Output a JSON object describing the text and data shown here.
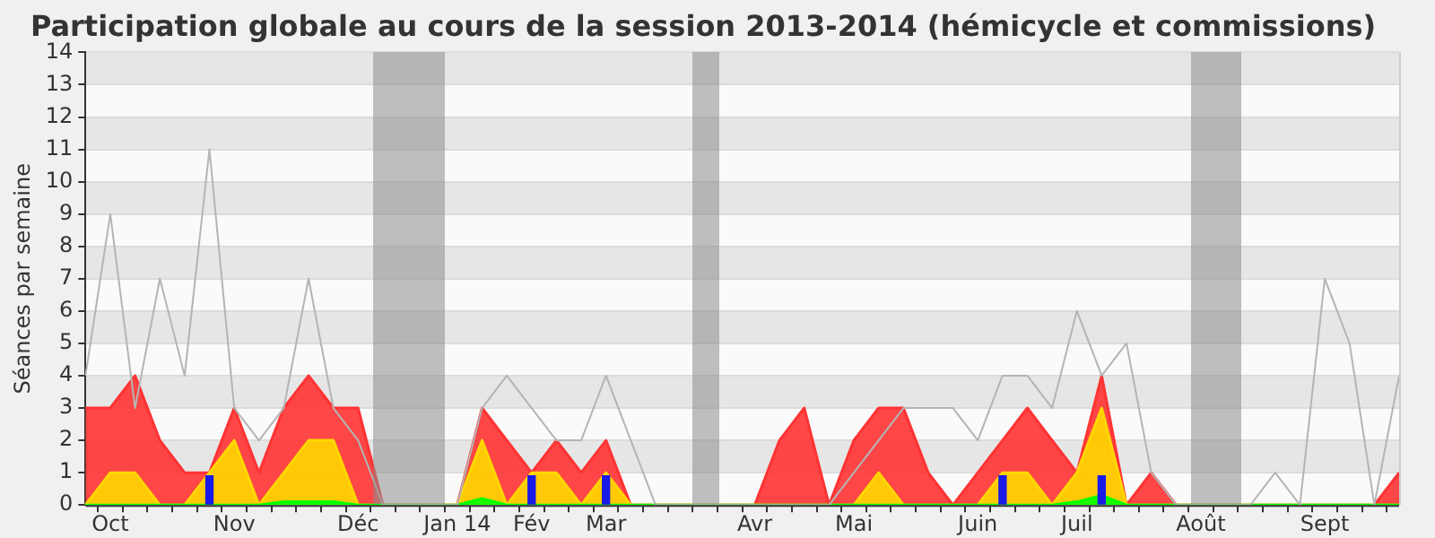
{
  "chart_data": {
    "type": "area",
    "title": "Participation globale au cours de la session 2013-2014 (hémicycle et commissions)",
    "ylabel": "Séances par semaine",
    "categories": [
      null,
      "Oct",
      null,
      null,
      null,
      null,
      "Nov",
      null,
      null,
      null,
      null,
      "Déc",
      null,
      null,
      null,
      "Jan 14",
      null,
      null,
      "Fév",
      null,
      null,
      "Mar",
      null,
      null,
      null,
      null,
      null,
      "Avr",
      null,
      null,
      null,
      "Mai",
      null,
      null,
      null,
      null,
      "Juin",
      null,
      null,
      null,
      "Juil",
      null,
      null,
      null,
      null,
      "Août",
      null,
      null,
      null,
      null,
      "Sept",
      null,
      null,
      null
    ],
    "ylim": [
      0,
      14
    ],
    "yticks": [
      0,
      1,
      2,
      3,
      4,
      5,
      6,
      7,
      8,
      9,
      10,
      11,
      12,
      13,
      14
    ],
    "grid": "y",
    "legend": false,
    "series": [
      {
        "color": "#ff3333",
        "values": [
          3,
          3,
          4,
          2,
          1,
          1,
          3,
          1,
          3,
          4,
          3,
          3,
          0,
          0,
          0,
          0,
          3,
          2,
          1,
          2,
          1,
          2,
          0,
          0,
          0,
          0,
          0,
          0,
          2,
          3,
          0,
          2,
          3,
          3,
          1,
          0,
          1,
          2,
          3,
          2,
          1,
          4,
          0,
          1,
          0,
          0,
          0,
          0,
          0,
          0,
          0,
          0,
          0,
          1
        ]
      },
      {
        "color": "#ffd700",
        "values": [
          0,
          1,
          1,
          0,
          0,
          1,
          2,
          0,
          1,
          2,
          2,
          0,
          0,
          0,
          0,
          0,
          2,
          0,
          1,
          1,
          0,
          1,
          0,
          0,
          0,
          0,
          0,
          0,
          0,
          0,
          0,
          0,
          1,
          0,
          0,
          0,
          0,
          1,
          1,
          0,
          1,
          3,
          0,
          0,
          0,
          0,
          0,
          0,
          0,
          0,
          0,
          0,
          0,
          0
        ]
      },
      {
        "color": "#00ff00",
        "values": [
          0,
          0,
          0,
          0,
          0,
          0,
          0,
          0,
          0.1,
          0.1,
          0.1,
          0,
          0,
          0,
          0,
          0,
          0.2,
          0,
          0,
          0,
          0,
          0,
          0,
          0,
          0,
          0,
          0,
          0,
          0,
          0,
          0,
          0,
          0,
          0,
          0,
          0,
          0,
          0,
          0,
          0,
          0.1,
          0.3,
          0,
          0,
          0,
          0,
          0,
          0,
          0,
          0,
          0,
          0,
          0,
          0
        ]
      },
      {
        "type": "bar",
        "color": "#1a1ae6",
        "values": [
          null,
          null,
          null,
          null,
          null,
          0.9,
          null,
          null,
          null,
          null,
          null,
          null,
          null,
          null,
          null,
          null,
          null,
          null,
          0.9,
          null,
          null,
          0.9,
          null,
          null,
          null,
          null,
          null,
          null,
          null,
          null,
          null,
          null,
          null,
          null,
          null,
          null,
          null,
          0.9,
          null,
          null,
          null,
          0.9,
          null,
          null,
          null,
          null,
          null,
          null,
          null,
          null,
          null,
          null,
          null,
          null
        ]
      },
      {
        "type": "line",
        "color": "#b4b4b4",
        "values": [
          4,
          9,
          3,
          7,
          4,
          11,
          3,
          2,
          3,
          7,
          3,
          2,
          0,
          0,
          0,
          0,
          3,
          4,
          3,
          2,
          2,
          4,
          2,
          0,
          0,
          0,
          0,
          0,
          0,
          0,
          0,
          1,
          2,
          3,
          3,
          3,
          2,
          4,
          4,
          3,
          6,
          4,
          5,
          1,
          0,
          0,
          0,
          0,
          1,
          0,
          7,
          5,
          0,
          4
        ]
      }
    ]
  }
}
